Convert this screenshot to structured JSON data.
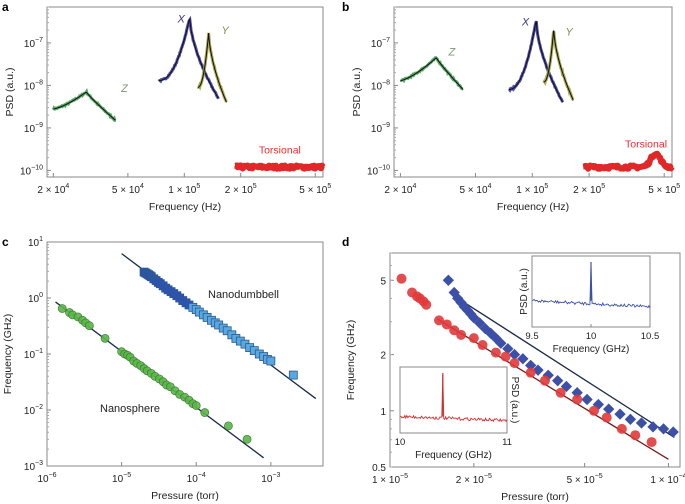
{
  "chart_data": [
    {
      "panel": "a",
      "type": "line",
      "xlabel": "Frequency (Hz)",
      "ylabel": "PSD (a.u.)",
      "xscale": "log",
      "yscale": "log",
      "xlim": [
        18500,
        550000
      ],
      "ylim": [
        7e-11,
        7e-07
      ],
      "xticks": [
        {
          "v": 20000,
          "m": "2 × 10",
          "e": "4"
        },
        {
          "v": 50000,
          "m": "5 × 10",
          "e": "4"
        },
        {
          "v": 100000,
          "m": "1 × 10",
          "e": "5"
        },
        {
          "v": 200000,
          "m": "2 × 10",
          "e": "5"
        },
        {
          "v": 500000,
          "m": "5 × 10",
          "e": "5"
        }
      ],
      "yticks": [
        {
          "v": 1e-07,
          "m": "10",
          "e": "−7"
        },
        {
          "v": 1e-08,
          "m": "10",
          "e": "−8"
        },
        {
          "v": 1e-09,
          "m": "10",
          "e": "−9"
        },
        {
          "v": 1e-10,
          "m": "10",
          "e": "−10"
        }
      ],
      "series": [
        {
          "name": "Z",
          "color": "#3c9a4a",
          "label_color": "#7a9a7a",
          "f_start": 20000,
          "f_peak": 30000,
          "f_end": 43000,
          "psd_start": 2.8e-09,
          "psd_peak": 7e-09,
          "psd_end": 1.5e-09,
          "label_at": [
            46000,
            7e-09
          ]
        },
        {
          "name": "X",
          "color": "#2e2e9a",
          "label_color": "#3a3a7a",
          "f_start": 73000,
          "f_peak": 107000,
          "f_end": 152000,
          "psd_start": 1.3e-08,
          "psd_peak": 4e-07,
          "psd_end": 5e-09,
          "label_at": [
            92000,
            3e-07
          ]
        },
        {
          "name": "Y",
          "color": "#9a9a30",
          "label_color": "#8a8a50",
          "f_start": 118000,
          "f_peak": 135000,
          "f_end": 168000,
          "psd_start": 9e-09,
          "psd_peak": 1.8e-07,
          "psd_end": 4e-09,
          "label_at": [
            158000,
            1.6e-07
          ]
        },
        {
          "name": "Torsional",
          "color": "#e02828",
          "label_color": "#e03030",
          "f_start": 186000,
          "f_peak": 300000,
          "f_end": 550000,
          "psd_start": 1.2e-10,
          "psd_peak": 1.2e-10,
          "psd_end": 1.2e-10,
          "label_at": [
            250000,
            2.5e-10
          ]
        }
      ]
    },
    {
      "panel": "b",
      "type": "line",
      "xlabel": "Frequency (Hz)",
      "ylabel": "PSD (a.u.)",
      "xscale": "log",
      "yscale": "log",
      "xlim": [
        18500,
        550000
      ],
      "ylim": [
        7e-11,
        7e-07
      ],
      "xticks": [
        {
          "v": 20000,
          "m": "2 × 10",
          "e": "4"
        },
        {
          "v": 50000,
          "m": "5 × 10",
          "e": "4"
        },
        {
          "v": 100000,
          "m": "1 × 10",
          "e": "5"
        },
        {
          "v": 200000,
          "m": "2 × 10",
          "e": "5"
        },
        {
          "v": 500000,
          "m": "5 × 10",
          "e": "5"
        }
      ],
      "yticks": [
        {
          "v": 1e-07,
          "m": "10",
          "e": "−7"
        },
        {
          "v": 1e-08,
          "m": "10",
          "e": "−8"
        },
        {
          "v": 1e-09,
          "m": "10",
          "e": "−9"
        },
        {
          "v": 1e-10,
          "m": "10",
          "e": "−10"
        }
      ],
      "series": [
        {
          "name": "Z",
          "color": "#3c9a4a",
          "label_color": "#7a9a7a",
          "f_start": 20000,
          "f_peak": 31000,
          "f_end": 43000,
          "psd_start": 1.3e-08,
          "psd_peak": 4.5e-08,
          "psd_end": 8e-09,
          "label_at": [
            36000,
            5e-08
          ]
        },
        {
          "name": "X",
          "color": "#2e2e9a",
          "label_color": "#3a3a7a",
          "f_start": 75000,
          "f_peak": 105000,
          "f_end": 145000,
          "psd_start": 8e-09,
          "psd_peak": 3.5e-07,
          "psd_end": 4e-09,
          "label_at": [
            88000,
            2.6e-07
          ]
        },
        {
          "name": "Y",
          "color": "#9a9a30",
          "label_color": "#8a8a50",
          "f_start": 115000,
          "f_peak": 130000,
          "f_end": 165000,
          "psd_start": 1.2e-08,
          "psd_peak": 2.2e-07,
          "psd_end": 4.5e-09,
          "label_at": [
            150000,
            1.5e-07
          ]
        },
        {
          "name": "Torsional",
          "color": "#e02828",
          "label_color": "#e03030",
          "f_start": 186000,
          "f_peak": 450000,
          "f_end": 550000,
          "psd_start": 1.2e-10,
          "psd_peak": 2.5e-10,
          "psd_end": 1.15e-10,
          "label_at": [
            310000,
            3.5e-10
          ]
        }
      ]
    },
    {
      "panel": "c",
      "type": "scatter",
      "xlabel": "Pressure (torr)",
      "ylabel": "Frequency (GHz)",
      "xscale": "log",
      "yscale": "log",
      "xlim": [
        1e-06,
        0.005
      ],
      "ylim": [
        0.001,
        10
      ],
      "xticks": [
        {
          "v": 1e-06,
          "m": "10",
          "e": "−6"
        },
        {
          "v": 1e-05,
          "m": "10",
          "e": "−5"
        },
        {
          "v": 0.0001,
          "m": "10",
          "e": "−4"
        },
        {
          "v": 0.001,
          "m": "10",
          "e": "−3"
        }
      ],
      "yticks": [
        {
          "v": 10,
          "m": "10",
          "e": "1"
        },
        {
          "v": 1,
          "m": "10",
          "e": "0"
        },
        {
          "v": 0.1,
          "m": "10",
          "e": "−1"
        },
        {
          "v": 0.01,
          "m": "10",
          "e": "−2"
        },
        {
          "v": 0.001,
          "m": "10",
          "e": "−3"
        }
      ],
      "series": [
        {
          "name": "Nanodumbbell",
          "marker": "square",
          "color": "#5aa8e0",
          "color_dense": "#3050b8",
          "x": [
            2e-05,
            2.1e-05,
            2.2e-05,
            2.3e-05,
            2.4e-05,
            2.5e-05,
            2.7e-05,
            2.9e-05,
            3.1e-05,
            3.3e-05,
            3.6e-05,
            3.9e-05,
            4.2e-05,
            4.6e-05,
            5e-05,
            5.5e-05,
            6e-05,
            6.6e-05,
            7.3e-05,
            8e-05,
            9e-05,
            0.0001,
            0.00011,
            0.000125,
            0.00014,
            0.00016,
            0.00018,
            0.0002,
            0.00023,
            0.00026,
            0.0003,
            0.00034,
            0.00039,
            0.00045,
            0.00052,
            0.0006,
            0.0007,
            0.0008,
            0.0009,
            0.001,
            0.002
          ],
          "y": [
            2.9,
            2.8,
            2.7,
            2.6,
            2.5,
            2.4,
            2.2,
            2.05,
            1.9,
            1.8,
            1.65,
            1.5,
            1.4,
            1.3,
            1.2,
            1.1,
            1.0,
            0.9,
            0.82,
            0.75,
            0.68,
            0.62,
            0.56,
            0.5,
            0.45,
            0.4,
            0.36,
            0.33,
            0.29,
            0.26,
            0.22,
            0.19,
            0.17,
            0.15,
            0.13,
            0.115,
            0.1,
            0.09,
            0.08,
            0.075,
            0.042
          ],
          "fit": {
            "x": [
              1e-05,
              0.004
            ],
            "y": [
              6.2,
              0.016
            ]
          }
        },
        {
          "name": "Nanosphere",
          "marker": "circle",
          "color": "#5ab848",
          "x": [
            1.6e-06,
            2e-06,
            2.2e-06,
            2.6e-06,
            3e-06,
            3.3e-06,
            3.7e-06,
            6e-06,
            1e-05,
            1.1e-05,
            1.2e-05,
            1.3e-05,
            1.45e-05,
            1.6e-05,
            1.8e-05,
            2e-05,
            2.2e-05,
            2.5e-05,
            2.8e-05,
            3.2e-05,
            3.6e-05,
            4e-05,
            4.5e-05,
            5.2e-05,
            6e-05,
            7e-05,
            8e-05,
            9e-05,
            0.0001,
            0.00013,
            0.00027,
            0.00048
          ],
          "y": [
            0.65,
            0.55,
            0.5,
            0.46,
            0.4,
            0.36,
            0.32,
            0.19,
            0.11,
            0.1,
            0.095,
            0.088,
            0.075,
            0.068,
            0.062,
            0.055,
            0.05,
            0.045,
            0.04,
            0.036,
            0.032,
            0.028,
            0.026,
            0.022,
            0.019,
            0.017,
            0.015,
            0.013,
            0.012,
            0.009,
            0.0052,
            0.003
          ],
          "fit": {
            "x": [
              1.3e-06,
              0.0008
            ],
            "y": [
              0.85,
              0.0014
            ]
          }
        }
      ],
      "annotations": [
        "Nanodumbbell",
        "Nanosphere"
      ]
    },
    {
      "panel": "d",
      "type": "scatter",
      "xlabel": "Pressure (torr)",
      "ylabel": "Frequency (GHz)",
      "xscale": "log",
      "yscale": "log",
      "xlim": [
        1e-05,
        0.00011
      ],
      "ylim": [
        0.5,
        7
      ],
      "xticks": [
        {
          "v": 1e-05,
          "m": "1 × 10",
          "e": "−5"
        },
        {
          "v": 2e-05,
          "m": "2 × 10",
          "e": "−5"
        },
        {
          "v": 5e-05,
          "m": "5 × 10",
          "e": "−5"
        },
        {
          "v": 0.0001,
          "m": "1 × 10",
          "e": "−4"
        }
      ],
      "yticks": [
        {
          "v": 5,
          "m": "5",
          "e": ""
        },
        {
          "v": 2,
          "m": "2",
          "e": ""
        },
        {
          "v": 1,
          "m": "1",
          "e": ""
        },
        {
          "v": 0.5,
          "m": "0.5",
          "e": ""
        }
      ],
      "series": [
        {
          "name": "diamond-series",
          "marker": "diamond",
          "color": "#3d50a8",
          "x": [
            1.62e-05,
            1.7e-05,
            1.75e-05,
            1.8e-05,
            1.85e-05,
            1.9e-05,
            1.95e-05,
            2e-05,
            2.1e-05,
            2.2e-05,
            2.3e-05,
            2.4e-05,
            2.5e-05,
            2.65e-05,
            2.8e-05,
            3e-05,
            3.2e-05,
            3.4e-05,
            3.7e-05,
            4e-05,
            4.3e-05,
            4.7e-05,
            5.1e-05,
            5.6e-05,
            6.1e-05,
            6.7e-05,
            7.3e-05,
            8e-05,
            8.8e-05,
            9.6e-05,
            0.000104
          ],
          "y": [
            5.0,
            4.3,
            4.0,
            3.8,
            3.6,
            3.45,
            3.3,
            3.15,
            2.95,
            2.75,
            2.6,
            2.45,
            2.3,
            2.15,
            2.0,
            1.9,
            1.75,
            1.65,
            1.55,
            1.45,
            1.35,
            1.25,
            1.15,
            1.08,
            1.02,
            0.96,
            0.9,
            0.86,
            0.82,
            0.8,
            0.77
          ],
          "fit": {
            "x": [
              1.8e-05,
              0.000105
            ],
            "y": [
              3.9,
              0.72
            ]
          }
        },
        {
          "name": "circle-series",
          "marker": "circle",
          "color": "#e03a3a",
          "x": [
            1.1e-05,
            1.2e-05,
            1.25e-05,
            1.28e-05,
            1.32e-05,
            1.35e-05,
            1.5e-05,
            1.6e-05,
            1.7e-05,
            1.8e-05,
            2e-05,
            2.15e-05,
            2.4e-05,
            2.6e-05,
            2.8e-05,
            3.2e-05,
            3.6e-05,
            4.1e-05,
            4.7e-05,
            5.4e-05,
            6e-05,
            6.8e-05,
            7.6e-05,
            8.7e-05
          ],
          "y": [
            5.1,
            4.3,
            4.1,
            4.0,
            3.85,
            3.7,
            3.05,
            2.9,
            2.7,
            2.55,
            2.45,
            2.25,
            2.05,
            1.95,
            1.8,
            1.6,
            1.45,
            1.25,
            1.15,
            1.0,
            0.92,
            0.8,
            0.74,
            0.68
          ],
          "fit": {
            "x": [
              1.48e-05,
              0.0001
            ],
            "y": [
              3.1,
              0.55
            ]
          }
        }
      ],
      "insets": [
        {
          "xlabel": "Frequency (GHz)",
          "ylabel": "PSD (a.u.)",
          "xticks": [
            "9.5",
            "10",
            "10.5"
          ],
          "xlim": [
            9.5,
            10.5
          ],
          "peak": 10.0,
          "color": "#3d50a8"
        },
        {
          "xlabel": "Frequency (GHz)",
          "ylabel": "PSD (a.u.)",
          "xticks": [
            "10",
            "11"
          ],
          "xlim": [
            10,
            11
          ],
          "peak": 10.4,
          "color": "#d03030"
        }
      ]
    }
  ],
  "panel_letters": [
    "a",
    "b",
    "c",
    "d"
  ]
}
